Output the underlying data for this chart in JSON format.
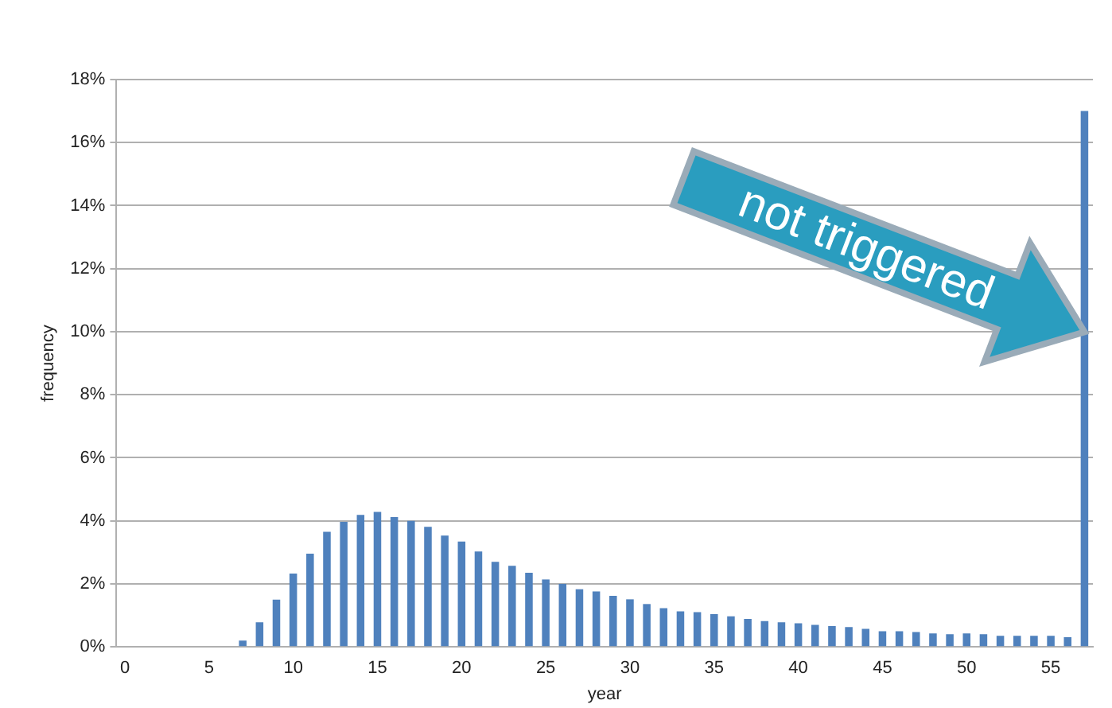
{
  "chart_data": {
    "type": "bar",
    "xlabel": "year",
    "ylabel": "frequency",
    "categories": [
      "0",
      null,
      null,
      null,
      null,
      "5",
      null,
      null,
      null,
      null,
      "10",
      null,
      null,
      null,
      null,
      "15",
      null,
      null,
      null,
      null,
      "20",
      null,
      null,
      null,
      null,
      "25",
      null,
      null,
      null,
      null,
      "30",
      null,
      null,
      null,
      null,
      "35",
      null,
      null,
      null,
      null,
      "40",
      null,
      null,
      null,
      null,
      "45",
      null,
      null,
      null,
      null,
      "50",
      null,
      null,
      null,
      null,
      "55",
      null,
      null
    ],
    "series": [
      {
        "color": "#4f81bd",
        "values": [
          0,
          0,
          0,
          0,
          0,
          0,
          0,
          0.2,
          0.78,
          1.5,
          2.33,
          2.96,
          3.65,
          3.97,
          4.19,
          4.28,
          4.12,
          4.0,
          3.81,
          3.53,
          3.34,
          3.03,
          2.7,
          2.57,
          2.35,
          2.14,
          2.0,
          1.83,
          1.76,
          1.62,
          1.51,
          1.36,
          1.23,
          1.13,
          1.1,
          1.04,
          0.97,
          0.89,
          0.82,
          0.78,
          0.75,
          0.7,
          0.66,
          0.63,
          0.57,
          0.5,
          0.5,
          0.47,
          0.43,
          0.4,
          0.43,
          0.4,
          0.35,
          0.35,
          0.35,
          0.35,
          0.31,
          17
        ]
      }
    ],
    "ylim": [
      0,
      18
    ],
    "yticks": [
      {
        "value": 0,
        "label": "0%"
      },
      {
        "value": 2,
        "label": "2%"
      },
      {
        "value": 4,
        "label": "4%"
      },
      {
        "value": 6,
        "label": "6%"
      },
      {
        "value": 8,
        "label": "8%"
      },
      {
        "value": 10,
        "label": "10%"
      },
      {
        "value": 12,
        "label": "12%"
      },
      {
        "value": 14,
        "label": "14%"
      },
      {
        "value": 16,
        "label": "16%"
      },
      {
        "value": 18,
        "label": "18%"
      }
    ],
    "grid": "y",
    "legend": false,
    "annotations": [
      "not triggered"
    ]
  }
}
